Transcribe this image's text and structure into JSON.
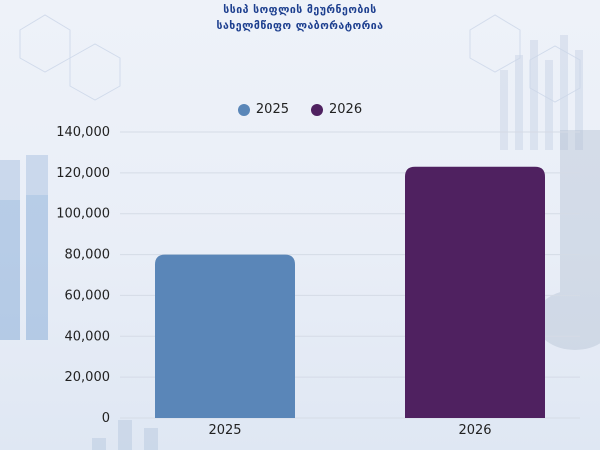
{
  "header": {
    "line1": "სსიპ სოფლის მეურნეობის",
    "line2": "სახელმწიფო ლაბორატორია"
  },
  "colors": {
    "series_2025": "#5a86b8",
    "series_2026": "#4f2160",
    "grid": "#d5dbe6",
    "axis_text": "#222222",
    "header_text": "#1d3f8f"
  },
  "chart_data": {
    "type": "bar",
    "categories": [
      "2025",
      "2026"
    ],
    "series": [
      {
        "name": "2025",
        "values": [
          80000,
          null
        ]
      },
      {
        "name": "2026",
        "values": [
          null,
          123000
        ]
      }
    ],
    "ylim": [
      0,
      140000
    ],
    "yticks": [
      "0",
      "20,000",
      "40,000",
      "60,000",
      "80,000",
      "100,000",
      "120,000",
      "140,000"
    ],
    "ytick_values": [
      0,
      20000,
      40000,
      60000,
      80000,
      100000,
      120000,
      140000
    ],
    "grid": true,
    "legend_position": "top-center",
    "legend": [
      "2025",
      "2026"
    ]
  }
}
